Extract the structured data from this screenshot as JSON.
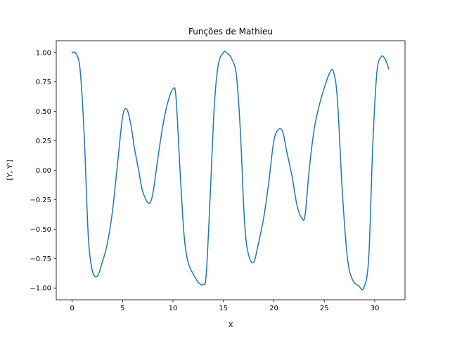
{
  "chart_data": {
    "type": "line",
    "title": "Funções de Mathieu",
    "xlabel": "X",
    "ylabel": "[Y, Y']",
    "xlim": [
      -1.57,
      33.0
    ],
    "ylim": [
      -1.1,
      1.1
    ],
    "xticks": [
      0,
      5,
      10,
      15,
      20,
      25,
      30
    ],
    "xtick_labels": [
      "0",
      "5",
      "10",
      "15",
      "20",
      "25",
      "30"
    ],
    "yticks": [
      -1.0,
      -0.75,
      -0.5,
      -0.25,
      0.0,
      0.25,
      0.5,
      0.75,
      1.0
    ],
    "ytick_labels": [
      "−1.00",
      "−0.75",
      "−0.50",
      "−0.25",
      "0.00",
      "0.25",
      "0.50",
      "0.75",
      "1.00"
    ],
    "grid": false,
    "legend": false,
    "series": [
      {
        "color": "#1f77b4",
        "x": [
          0,
          0.4,
          0.8,
          1.2,
          1.6,
          2.0,
          2.5,
          3.0,
          3.5,
          4.0,
          4.5,
          5.0,
          5.4,
          5.8,
          6.2,
          6.6,
          7.0,
          7.6,
          8.0,
          8.5,
          9.0,
          9.5,
          10.0,
          10.3,
          10.7,
          11.1,
          11.5,
          12.0,
          12.5,
          13.0,
          13.3,
          13.7,
          14.1,
          14.5,
          15.0,
          15.3,
          15.8,
          16.3,
          16.7,
          17.1,
          17.5,
          18.0,
          18.4,
          19.0,
          19.5,
          20.0,
          20.5,
          20.9,
          21.3,
          21.8,
          22.3,
          22.8,
          23.1,
          23.5,
          24.0,
          24.5,
          25.0,
          25.5,
          25.9,
          26.3,
          26.8,
          27.3,
          27.8,
          28.4,
          28.9,
          29.4,
          29.8,
          30.2,
          30.6,
          31.0,
          31.4
        ],
        "y": [
          1.0,
          0.99,
          0.85,
          0.3,
          -0.55,
          -0.85,
          -0.9,
          -0.78,
          -0.62,
          -0.35,
          0.05,
          0.45,
          0.52,
          0.4,
          0.18,
          0.0,
          -0.18,
          -0.28,
          -0.2,
          0.1,
          0.38,
          0.58,
          0.69,
          0.62,
          0.0,
          -0.55,
          -0.78,
          -0.88,
          -0.95,
          -0.97,
          -0.88,
          -0.2,
          0.55,
          0.9,
          1.0,
          1.0,
          0.95,
          0.8,
          0.3,
          -0.45,
          -0.72,
          -0.78,
          -0.65,
          -0.4,
          -0.1,
          0.25,
          0.35,
          0.32,
          0.15,
          -0.05,
          -0.3,
          -0.41,
          -0.38,
          0.0,
          0.35,
          0.55,
          0.7,
          0.82,
          0.84,
          0.6,
          -0.2,
          -0.75,
          -0.93,
          -0.98,
          -1.0,
          -0.75,
          0.2,
          0.82,
          0.96,
          0.95,
          0.86
        ]
      }
    ]
  }
}
